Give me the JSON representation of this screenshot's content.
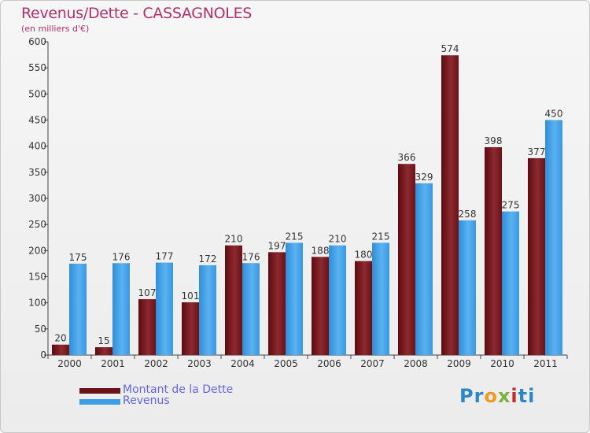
{
  "chart_data": {
    "type": "bar",
    "title": "Revenus/Dette - CASSAGNOLES",
    "subtitle": "(en milliers d'€)",
    "xlabel": "",
    "ylabel": "",
    "ylim": [
      0,
      600
    ],
    "yticks": [
      "0",
      "50",
      "100",
      "150",
      "200",
      "250",
      "300",
      "350",
      "400",
      "450",
      "500",
      "550",
      "600"
    ],
    "grid": false,
    "categories": [
      "2000",
      "2001",
      "2002",
      "2003",
      "2004",
      "2005",
      "2006",
      "2007",
      "2008",
      "2009",
      "2010",
      "2011"
    ],
    "series": [
      {
        "name": "Montant de la Dette",
        "color": "#7a1a1e",
        "values": [
          20,
          15,
          107,
          101,
          210,
          197,
          188,
          180,
          366,
          574,
          398,
          377
        ],
        "labels": [
          "20",
          "15",
          "107",
          "101",
          "210",
          "197",
          "188",
          "180",
          "366",
          "574",
          "398",
          "377"
        ]
      },
      {
        "name": "Revenus",
        "color": "#3d9de6",
        "values": [
          175,
          176,
          177,
          172,
          176,
          215,
          210,
          215,
          329,
          258,
          275,
          450
        ],
        "labels": [
          "175",
          "176",
          "177",
          "172",
          "176",
          "215",
          "210",
          "215",
          "329",
          "258",
          "275",
          "450"
        ]
      }
    ],
    "legend_position": "bottom-left"
  },
  "logo": {
    "parts": [
      "Pr",
      "o",
      "x",
      "i",
      "ti"
    ]
  }
}
